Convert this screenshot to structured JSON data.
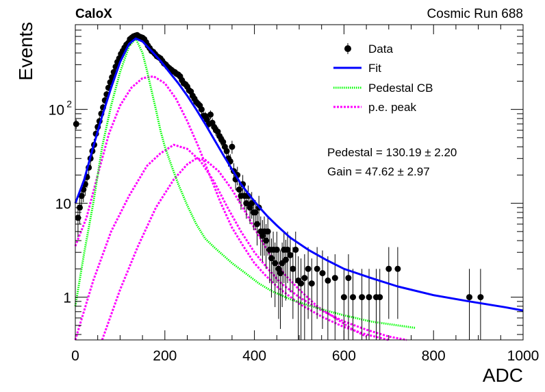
{
  "header": {
    "left": "CaloX",
    "right": "Cosmic Run 688"
  },
  "legend": {
    "entries": [
      {
        "key": "data",
        "label": "Data"
      },
      {
        "key": "fit",
        "label": "Fit"
      },
      {
        "key": "pedestal",
        "label": "Pedestal CB"
      },
      {
        "key": "pe",
        "label": "p.e. peak"
      }
    ]
  },
  "results": {
    "pedestal": "Pedestal = 130.19 ± 2.20",
    "gain": "Gain = 47.62 ± 2.97"
  },
  "colors": {
    "data": "#000000",
    "fit": "#0000ff",
    "pedestal": "#00ff00",
    "pe": "#ff00ff"
  },
  "chart_data": {
    "type": "scatter",
    "xlabel": "ADC",
    "ylabel": "Events",
    "xlim": [
      0,
      1000
    ],
    "ylim": [
      0.35,
      800
    ],
    "ylog": true,
    "grid": false,
    "legend_position": "top-right",
    "x_ticks": [
      {
        "v": 0,
        "label": "0"
      },
      {
        "v": 200,
        "label": "200"
      },
      {
        "v": 400,
        "label": "400"
      },
      {
        "v": 600,
        "label": "600"
      },
      {
        "v": 800,
        "label": "800"
      },
      {
        "v": 1000,
        "label": "1000"
      }
    ],
    "y_ticks": [
      {
        "v": 1,
        "label": "1",
        "sup": ""
      },
      {
        "v": 10,
        "label": "10",
        "sup": ""
      },
      {
        "v": 100,
        "label": "10",
        "sup": "2"
      }
    ],
    "data_points": [
      [
        2,
        70
      ],
      [
        6,
        7
      ],
      [
        10,
        9
      ],
      [
        14,
        12
      ],
      [
        18,
        14
      ],
      [
        22,
        16
      ],
      [
        26,
        19
      ],
      [
        30,
        24
      ],
      [
        34,
        30
      ],
      [
        38,
        36
      ],
      [
        42,
        42
      ],
      [
        46,
        55
      ],
      [
        50,
        65
      ],
      [
        54,
        75
      ],
      [
        58,
        90
      ],
      [
        62,
        105
      ],
      [
        66,
        125
      ],
      [
        70,
        145
      ],
      [
        74,
        170
      ],
      [
        78,
        195
      ],
      [
        82,
        220
      ],
      [
        86,
        250
      ],
      [
        90,
        285
      ],
      [
        94,
        320
      ],
      [
        98,
        350
      ],
      [
        102,
        390
      ],
      [
        106,
        420
      ],
      [
        110,
        455
      ],
      [
        114,
        490
      ],
      [
        118,
        510
      ],
      [
        122,
        560
      ],
      [
        126,
        580
      ],
      [
        130,
        600
      ],
      [
        134,
        610
      ],
      [
        138,
        620
      ],
      [
        142,
        600
      ],
      [
        146,
        590
      ],
      [
        150,
        580
      ],
      [
        154,
        560
      ],
      [
        158,
        520
      ],
      [
        162,
        480
      ],
      [
        166,
        450
      ],
      [
        170,
        420
      ],
      [
        174,
        410
      ],
      [
        178,
        390
      ],
      [
        182,
        370
      ],
      [
        186,
        360
      ],
      [
        190,
        350
      ],
      [
        194,
        330
      ],
      [
        198,
        310
      ],
      [
        202,
        300
      ],
      [
        206,
        285
      ],
      [
        210,
        275
      ],
      [
        214,
        265
      ],
      [
        218,
        255
      ],
      [
        222,
        250
      ],
      [
        226,
        240
      ],
      [
        230,
        235
      ],
      [
        234,
        225
      ],
      [
        238,
        205
      ],
      [
        242,
        190
      ],
      [
        246,
        185
      ],
      [
        250,
        175
      ],
      [
        254,
        160
      ],
      [
        258,
        155
      ],
      [
        262,
        140
      ],
      [
        266,
        130
      ],
      [
        270,
        120
      ],
      [
        274,
        115
      ],
      [
        278,
        110
      ],
      [
        282,
        100
      ],
      [
        286,
        85
      ],
      [
        290,
        85
      ],
      [
        294,
        78
      ],
      [
        298,
        70
      ],
      [
        302,
        88
      ],
      [
        306,
        72
      ],
      [
        310,
        65
      ],
      [
        314,
        60
      ],
      [
        318,
        58
      ],
      [
        322,
        52
      ],
      [
        326,
        48
      ],
      [
        330,
        45
      ],
      [
        334,
        40
      ],
      [
        338,
        36
      ],
      [
        342,
        30
      ],
      [
        346,
        28
      ],
      [
        350,
        40
      ],
      [
        354,
        22
      ],
      [
        358,
        18
      ],
      [
        362,
        20
      ],
      [
        366,
        14
      ],
      [
        370,
        12
      ],
      [
        374,
        16
      ],
      [
        378,
        12
      ],
      [
        382,
        10
      ],
      [
        386,
        12
      ],
      [
        390,
        9
      ],
      [
        394,
        10
      ],
      [
        398,
        8
      ],
      [
        402,
        8
      ],
      [
        406,
        6
      ],
      [
        410,
        9
      ],
      [
        414,
        5
      ],
      [
        418,
        4.5
      ],
      [
        422,
        5
      ],
      [
        426,
        4
      ],
      [
        430,
        5
      ],
      [
        434,
        3.2
      ],
      [
        438,
        2.6
      ],
      [
        442,
        3.2
      ],
      [
        446,
        2.3
      ],
      [
        450,
        3.2
      ],
      [
        454,
        2.0
      ],
      [
        458,
        1.8
      ],
      [
        462,
        2.3
      ],
      [
        466,
        3.2
      ],
      [
        470,
        2.5
      ],
      [
        474,
        3.2
      ],
      [
        480,
        2.8
      ],
      [
        486,
        2.0
      ],
      [
        492,
        3.2
      ],
      [
        498,
        1.5
      ],
      [
        504,
        1.4
      ],
      [
        512,
        1.6
      ],
      [
        520,
        2.0
      ],
      [
        528,
        1.4
      ],
      [
        540,
        2.0
      ],
      [
        552,
        1.8
      ],
      [
        564,
        1.5
      ],
      [
        580,
        1.6
      ],
      [
        600,
        1.0
      ],
      [
        610,
        1.6
      ],
      [
        620,
        1.0
      ],
      [
        640,
        1.0
      ],
      [
        656,
        1.0
      ],
      [
        672,
        1.0
      ],
      [
        680,
        1.0
      ],
      [
        700,
        2.0
      ],
      [
        720,
        2.0
      ],
      [
        880,
        1.0
      ],
      [
        905,
        1.0
      ]
    ],
    "fit_points": [
      [
        0,
        10
      ],
      [
        20,
        18
      ],
      [
        40,
        40
      ],
      [
        60,
        85
      ],
      [
        80,
        170
      ],
      [
        100,
        320
      ],
      [
        120,
        500
      ],
      [
        135,
        570
      ],
      [
        150,
        530
      ],
      [
        170,
        420
      ],
      [
        190,
        330
      ],
      [
        210,
        250
      ],
      [
        230,
        190
      ],
      [
        250,
        140
      ],
      [
        270,
        100
      ],
      [
        290,
        70
      ],
      [
        310,
        48
      ],
      [
        330,
        33
      ],
      [
        350,
        23
      ],
      [
        370,
        16
      ],
      [
        390,
        12
      ],
      [
        410,
        9.2
      ],
      [
        430,
        7.2
      ],
      [
        450,
        5.8
      ],
      [
        480,
        4.3
      ],
      [
        520,
        3.2
      ],
      [
        560,
        2.5
      ],
      [
        600,
        2.0
      ],
      [
        660,
        1.6
      ],
      [
        720,
        1.3
      ],
      [
        800,
        1.05
      ],
      [
        880,
        0.9
      ],
      [
        960,
        0.78
      ],
      [
        1000,
        0.72
      ]
    ],
    "pedestal_points": [
      [
        0,
        0.8
      ],
      [
        20,
        3
      ],
      [
        40,
        10
      ],
      [
        60,
        40
      ],
      [
        80,
        110
      ],
      [
        100,
        250
      ],
      [
        120,
        470
      ],
      [
        135,
        570
      ],
      [
        150,
        400
      ],
      [
        160,
        260
      ],
      [
        170,
        160
      ],
      [
        180,
        100
      ],
      [
        190,
        60
      ],
      [
        200,
        40
      ],
      [
        215,
        25
      ],
      [
        230,
        16
      ],
      [
        250,
        9.5
      ],
      [
        270,
        6
      ],
      [
        290,
        4.2
      ],
      [
        310,
        3.4
      ],
      [
        330,
        2.8
      ],
      [
        350,
        2.3
      ],
      [
        380,
        1.8
      ],
      [
        410,
        1.4
      ],
      [
        440,
        1.15
      ],
      [
        480,
        0.95
      ],
      [
        520,
        0.82
      ],
      [
        560,
        0.72
      ],
      [
        600,
        0.64
      ],
      [
        660,
        0.55
      ],
      [
        720,
        0.5
      ],
      [
        760,
        0.47
      ]
    ],
    "pe_peaks": [
      [
        [
          0,
          3.5
        ],
        [
          25,
          7
        ],
        [
          50,
          20
        ],
        [
          75,
          55
        ],
        [
          100,
          110
        ],
        [
          125,
          170
        ],
        [
          150,
          215
        ],
        [
          175,
          225
        ],
        [
          200,
          190
        ],
        [
          225,
          130
        ],
        [
          250,
          75
        ],
        [
          275,
          40
        ],
        [
          300,
          20
        ],
        [
          325,
          10
        ],
        [
          350,
          5.5
        ],
        [
          375,
          3.5
        ],
        [
          400,
          2.3
        ],
        [
          425,
          1.7
        ],
        [
          450,
          1.3
        ],
        [
          500,
          0.85
        ],
        [
          550,
          0.62
        ],
        [
          600,
          0.48
        ],
        [
          650,
          0.4
        ],
        [
          700,
          0.35
        ]
      ],
      [
        [
          0,
          0.35
        ],
        [
          40,
          1.5
        ],
        [
          80,
          5
        ],
        [
          120,
          12
        ],
        [
          160,
          25
        ],
        [
          190,
          34
        ],
        [
          220,
          42
        ],
        [
          250,
          38
        ],
        [
          280,
          28
        ],
        [
          310,
          17
        ],
        [
          340,
          9
        ],
        [
          370,
          5
        ],
        [
          400,
          3
        ],
        [
          430,
          2
        ],
        [
          460,
          1.4
        ],
        [
          500,
          1.0
        ],
        [
          550,
          0.72
        ],
        [
          600,
          0.55
        ],
        [
          650,
          0.45
        ],
        [
          700,
          0.38
        ],
        [
          740,
          0.35
        ]
      ],
      [
        [
          60,
          0.35
        ],
        [
          100,
          1.2
        ],
        [
          140,
          3.5
        ],
        [
          180,
          9
        ],
        [
          220,
          18
        ],
        [
          250,
          26
        ],
        [
          270,
          30
        ],
        [
          290,
          29
        ],
        [
          320,
          22
        ],
        [
          350,
          14
        ],
        [
          380,
          8
        ],
        [
          410,
          4.5
        ],
        [
          440,
          2.6
        ],
        [
          470,
          1.7
        ],
        [
          500,
          1.2
        ],
        [
          540,
          0.8
        ],
        [
          580,
          0.6
        ],
        [
          620,
          0.45
        ],
        [
          650,
          0.38
        ]
      ]
    ]
  }
}
